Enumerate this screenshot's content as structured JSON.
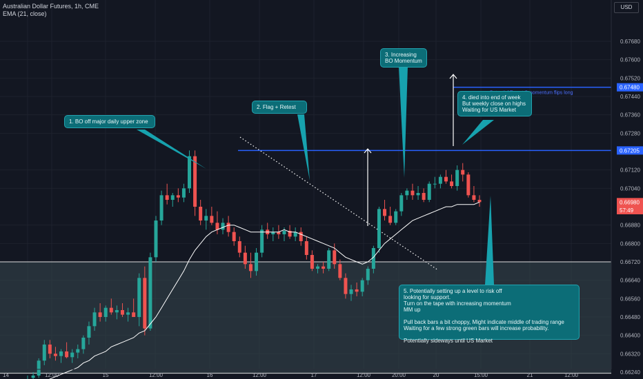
{
  "header": {
    "symbol_line": "Australian Dollar Futures, 1h, CME",
    "indicator_line": "EMA (21, close)",
    "currency_button": "USD"
  },
  "colors": {
    "background": "#131722",
    "grid": "#1e222d",
    "up": "#26a69a",
    "down": "#ef5350",
    "ema": "#ffffff",
    "zone": "#37474f",
    "level": "#2962ff",
    "annotation_bg": "#0c6d77",
    "annotation_border": "#22a4b0"
  },
  "chart_data": {
    "type": "candlestick",
    "y_axis": {
      "range": [
        0.6621,
        0.6786
      ],
      "ticks": [
        "0.67680",
        "0.67600",
        "0.67520",
        "0.67440",
        "0.67360",
        "0.67280",
        "0.67120",
        "0.67040",
        "0.66880",
        "0.66800",
        "0.66720",
        "0.66640",
        "0.66560",
        "0.66480",
        "0.66400",
        "0.66320",
        "0.66240"
      ]
    },
    "x_axis": {
      "ticks": [
        "14",
        "12:00",
        "15",
        "12:00",
        "16",
        "12:00",
        "17",
        "12:00",
        "20:00",
        "20",
        "15:00",
        "21",
        "12:00"
      ]
    },
    "price_labels": [
      {
        "label": "0.67480",
        "value": 0.6748,
        "style": "level"
      },
      {
        "label": "0.67205",
        "value": 0.67205,
        "style": "level"
      },
      {
        "label": "0.66980",
        "value": 0.6698,
        "style": "last"
      },
      {
        "label": "57:49",
        "value": 0.66945,
        "style": "timer"
      }
    ],
    "levels": [
      {
        "value": 0.67205
      },
      {
        "value": 0.6748,
        "label": "Potential Target if momentum flips long"
      }
    ],
    "zone": {
      "from": 0.66235,
      "to": 0.6672
    },
    "candles": [
      {
        "o": 0.66205,
        "h": 0.66225,
        "l": 0.6618,
        "c": 0.6621
      },
      {
        "o": 0.66215,
        "h": 0.6624,
        "l": 0.662,
        "c": 0.66225
      },
      {
        "o": 0.66225,
        "h": 0.663,
        "l": 0.66215,
        "c": 0.6629
      },
      {
        "o": 0.6629,
        "h": 0.6638,
        "l": 0.6627,
        "c": 0.6636
      },
      {
        "o": 0.6636,
        "h": 0.6638,
        "l": 0.663,
        "c": 0.6632
      },
      {
        "o": 0.6632,
        "h": 0.6635,
        "l": 0.6629,
        "c": 0.6631
      },
      {
        "o": 0.6631,
        "h": 0.6634,
        "l": 0.6628,
        "c": 0.6633
      },
      {
        "o": 0.6633,
        "h": 0.6637,
        "l": 0.663,
        "c": 0.66305
      },
      {
        "o": 0.66305,
        "h": 0.6634,
        "l": 0.6628,
        "c": 0.66325
      },
      {
        "o": 0.66325,
        "h": 0.6636,
        "l": 0.663,
        "c": 0.6634
      },
      {
        "o": 0.6634,
        "h": 0.664,
        "l": 0.6632,
        "c": 0.6639
      },
      {
        "o": 0.6639,
        "h": 0.6646,
        "l": 0.6636,
        "c": 0.6644
      },
      {
        "o": 0.6644,
        "h": 0.6652,
        "l": 0.6642,
        "c": 0.665
      },
      {
        "o": 0.665,
        "h": 0.6654,
        "l": 0.6646,
        "c": 0.6648
      },
      {
        "o": 0.6648,
        "h": 0.6653,
        "l": 0.6646,
        "c": 0.6652
      },
      {
        "o": 0.6652,
        "h": 0.6656,
        "l": 0.6649,
        "c": 0.665
      },
      {
        "o": 0.665,
        "h": 0.6653,
        "l": 0.6647,
        "c": 0.6651
      },
      {
        "o": 0.6651,
        "h": 0.6654,
        "l": 0.6648,
        "c": 0.6649
      },
      {
        "o": 0.6649,
        "h": 0.6652,
        "l": 0.6646,
        "c": 0.665
      },
      {
        "o": 0.665,
        "h": 0.6656,
        "l": 0.6648,
        "c": 0.6648
      },
      {
        "o": 0.6648,
        "h": 0.6667,
        "l": 0.6644,
        "c": 0.6665
      },
      {
        "o": 0.6665,
        "h": 0.667,
        "l": 0.664,
        "c": 0.6643
      },
      {
        "o": 0.6643,
        "h": 0.6676,
        "l": 0.6642,
        "c": 0.6674
      },
      {
        "o": 0.6674,
        "h": 0.6692,
        "l": 0.6672,
        "c": 0.669
      },
      {
        "o": 0.669,
        "h": 0.6703,
        "l": 0.6688,
        "c": 0.6701
      },
      {
        "o": 0.6701,
        "h": 0.6706,
        "l": 0.6697,
        "c": 0.6699
      },
      {
        "o": 0.6699,
        "h": 0.6702,
        "l": 0.6696,
        "c": 0.6701
      },
      {
        "o": 0.6701,
        "h": 0.6704,
        "l": 0.6698,
        "c": 0.67
      },
      {
        "o": 0.67,
        "h": 0.6706,
        "l": 0.6698,
        "c": 0.6704
      },
      {
        "o": 0.6704,
        "h": 0.67205,
        "l": 0.6702,
        "c": 0.6718
      },
      {
        "o": 0.6718,
        "h": 0.67205,
        "l": 0.6692,
        "c": 0.6696
      },
      {
        "o": 0.6696,
        "h": 0.6699,
        "l": 0.6688,
        "c": 0.669
      },
      {
        "o": 0.669,
        "h": 0.6695,
        "l": 0.6686,
        "c": 0.6692
      },
      {
        "o": 0.6692,
        "h": 0.6696,
        "l": 0.6688,
        "c": 0.6689
      },
      {
        "o": 0.6689,
        "h": 0.6694,
        "l": 0.6684,
        "c": 0.6686
      },
      {
        "o": 0.6686,
        "h": 0.6691,
        "l": 0.6684,
        "c": 0.6689
      },
      {
        "o": 0.6689,
        "h": 0.6692,
        "l": 0.6683,
        "c": 0.6685
      },
      {
        "o": 0.6685,
        "h": 0.6687,
        "l": 0.6679,
        "c": 0.6681
      },
      {
        "o": 0.6681,
        "h": 0.6683,
        "l": 0.6674,
        "c": 0.6676
      },
      {
        "o": 0.6676,
        "h": 0.6679,
        "l": 0.6669,
        "c": 0.6671
      },
      {
        "o": 0.6671,
        "h": 0.6676,
        "l": 0.6665,
        "c": 0.6668
      },
      {
        "o": 0.6668,
        "h": 0.6678,
        "l": 0.6666,
        "c": 0.6676
      },
      {
        "o": 0.6676,
        "h": 0.6688,
        "l": 0.6674,
        "c": 0.6686
      },
      {
        "o": 0.6686,
        "h": 0.6689,
        "l": 0.6682,
        "c": 0.6684
      },
      {
        "o": 0.6684,
        "h": 0.6687,
        "l": 0.6681,
        "c": 0.6685
      },
      {
        "o": 0.6685,
        "h": 0.6688,
        "l": 0.6682,
        "c": 0.6684
      },
      {
        "o": 0.6684,
        "h": 0.6687,
        "l": 0.6681,
        "c": 0.66855
      },
      {
        "o": 0.66855,
        "h": 0.6688,
        "l": 0.6682,
        "c": 0.6683
      },
      {
        "o": 0.6683,
        "h": 0.6687,
        "l": 0.6681,
        "c": 0.6685
      },
      {
        "o": 0.6685,
        "h": 0.6687,
        "l": 0.6679,
        "c": 0.6681
      },
      {
        "o": 0.6681,
        "h": 0.6683,
        "l": 0.6673,
        "c": 0.6675
      },
      {
        "o": 0.6675,
        "h": 0.6677,
        "l": 0.6668,
        "c": 0.6669
      },
      {
        "o": 0.6669,
        "h": 0.6671,
        "l": 0.6667,
        "c": 0.667
      },
      {
        "o": 0.667,
        "h": 0.6672,
        "l": 0.6667,
        "c": 0.6669
      },
      {
        "o": 0.6669,
        "h": 0.6678,
        "l": 0.6668,
        "c": 0.6677
      },
      {
        "o": 0.6677,
        "h": 0.668,
        "l": 0.6669,
        "c": 0.6671
      },
      {
        "o": 0.6671,
        "h": 0.6673,
        "l": 0.6664,
        "c": 0.6665
      },
      {
        "o": 0.6665,
        "h": 0.6667,
        "l": 0.6656,
        "c": 0.6658
      },
      {
        "o": 0.6658,
        "h": 0.6662,
        "l": 0.6655,
        "c": 0.666
      },
      {
        "o": 0.666,
        "h": 0.6663,
        "l": 0.6657,
        "c": 0.6659
      },
      {
        "o": 0.6659,
        "h": 0.6665,
        "l": 0.6657,
        "c": 0.6664
      },
      {
        "o": 0.6664,
        "h": 0.667,
        "l": 0.6662,
        "c": 0.6669
      },
      {
        "o": 0.6669,
        "h": 0.6679,
        "l": 0.6667,
        "c": 0.6678
      },
      {
        "o": 0.6678,
        "h": 0.6696,
        "l": 0.6676,
        "c": 0.6695
      },
      {
        "o": 0.6695,
        "h": 0.6699,
        "l": 0.669,
        "c": 0.6692
      },
      {
        "o": 0.6692,
        "h": 0.6696,
        "l": 0.6688,
        "c": 0.6689
      },
      {
        "o": 0.6689,
        "h": 0.6695,
        "l": 0.6688,
        "c": 0.6694
      },
      {
        "o": 0.6694,
        "h": 0.6702,
        "l": 0.6692,
        "c": 0.6701
      },
      {
        "o": 0.6701,
        "h": 0.6704,
        "l": 0.6699,
        "c": 0.6703
      },
      {
        "o": 0.6703,
        "h": 0.6706,
        "l": 0.6699,
        "c": 0.6701
      },
      {
        "o": 0.6701,
        "h": 0.6705,
        "l": 0.6699,
        "c": 0.6702
      },
      {
        "o": 0.6702,
        "h": 0.6704,
        "l": 0.6698,
        "c": 0.6699
      },
      {
        "o": 0.6699,
        "h": 0.6707,
        "l": 0.6698,
        "c": 0.6706
      },
      {
        "o": 0.6706,
        "h": 0.6709,
        "l": 0.6704,
        "c": 0.6706
      },
      {
        "o": 0.6706,
        "h": 0.671,
        "l": 0.6704,
        "c": 0.6709
      },
      {
        "o": 0.6709,
        "h": 0.6712,
        "l": 0.6706,
        "c": 0.6707
      },
      {
        "o": 0.6707,
        "h": 0.671,
        "l": 0.6704,
        "c": 0.6705
      },
      {
        "o": 0.6705,
        "h": 0.6714,
        "l": 0.6703,
        "c": 0.6712
      },
      {
        "o": 0.6712,
        "h": 0.6715,
        "l": 0.6707,
        "c": 0.671
      },
      {
        "o": 0.671,
        "h": 0.6711,
        "l": 0.67,
        "c": 0.6701
      },
      {
        "o": 0.6701,
        "h": 0.6705,
        "l": 0.6698,
        "c": 0.6699
      },
      {
        "o": 0.6699,
        "h": 0.6701,
        "l": 0.6696,
        "c": 0.6698
      }
    ],
    "ema_values": [
      0.6616,
      0.6617,
      0.6618,
      0.662,
      0.6621,
      0.6622,
      0.6623,
      0.6624,
      0.6625,
      0.6626,
      0.6628,
      0.6629,
      0.6631,
      0.6632,
      0.6633,
      0.6635,
      0.6636,
      0.6637,
      0.6638,
      0.6639,
      0.6641,
      0.6642,
      0.6645,
      0.6648,
      0.6652,
      0.6656,
      0.666,
      0.6664,
      0.6668,
      0.6673,
      0.6677,
      0.668,
      0.6683,
      0.6685,
      0.6686,
      0.6687,
      0.6688,
      0.6688,
      0.6687,
      0.6686,
      0.6685,
      0.6685,
      0.6685,
      0.6685,
      0.6685,
      0.6685,
      0.6686,
      0.6685,
      0.6685,
      0.6684,
      0.6683,
      0.6682,
      0.6681,
      0.668,
      0.6679,
      0.6678,
      0.6676,
      0.6674,
      0.6673,
      0.6672,
      0.6671,
      0.6672,
      0.6674,
      0.6677,
      0.668,
      0.6682,
      0.6684,
      0.6686,
      0.6688,
      0.669,
      0.6691,
      0.6692,
      0.6693,
      0.6694,
      0.6695,
      0.6696,
      0.6696,
      0.6697,
      0.6697,
      0.6697,
      0.6697,
      0.6698
    ],
    "annotations": [
      {
        "label": "1. BO off major daily upper zone"
      },
      {
        "label": "2. Flag + Retest"
      },
      {
        "label": "3. Increasing\nBO Momentum"
      },
      {
        "label": "4. died into end of week\nBut weekly close on highs\nWaiting for US Market"
      },
      {
        "label": "5. Potentially setting up a level to risk off\nlooking for support.\nTurn on the tape with increasing momentum\nMM up\n\nPull back bars a bit choppy, Might indicate middle of trading range\nWaiting for a few strong green bars will increase probability.\n\nPotentially sideways until US Market"
      }
    ]
  }
}
